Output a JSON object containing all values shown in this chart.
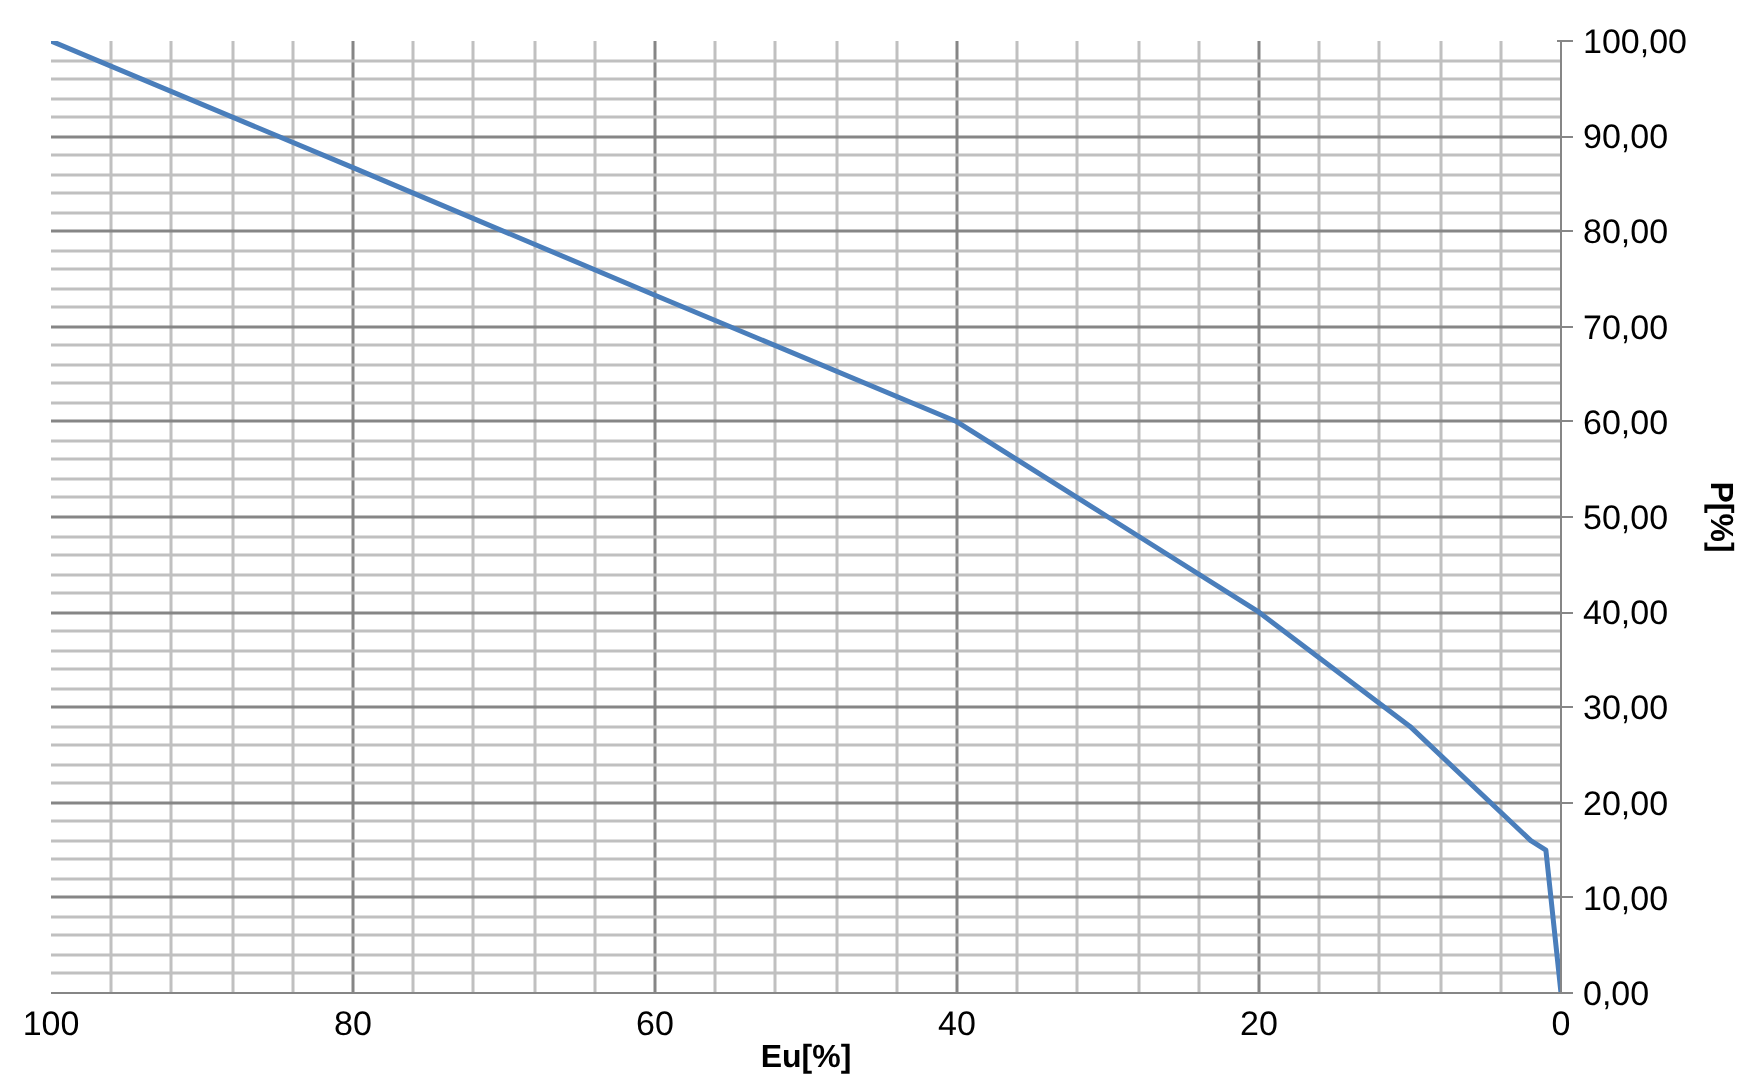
{
  "chart_data": {
    "type": "line",
    "xlabel": "Eu[%]",
    "ylabel": "P[%]",
    "x": [
      100,
      80,
      60,
      40,
      30,
      20,
      10,
      2,
      1,
      0
    ],
    "series": [
      {
        "color": "#4a7ebb",
        "values": [
          100,
          86.7,
          73.3,
          60,
          50,
          40,
          28,
          16,
          15,
          0
        ]
      }
    ],
    "xlim": [
      100,
      0
    ],
    "xticks": [
      100,
      80,
      60,
      40,
      20,
      0
    ],
    "ylim": [
      0,
      100
    ],
    "yticks": [
      {
        "value": 0,
        "label": "0,00"
      },
      {
        "value": 10,
        "label": "10,00"
      },
      {
        "value": 20,
        "label": "20,00"
      },
      {
        "value": 30,
        "label": "30,00"
      },
      {
        "value": 40,
        "label": "40,00"
      },
      {
        "value": 50,
        "label": "50,00"
      },
      {
        "value": 60,
        "label": "60,00"
      },
      {
        "value": 70,
        "label": "70,00"
      },
      {
        "value": 80,
        "label": "80,00"
      },
      {
        "value": 90,
        "label": "90,00"
      },
      {
        "value": 100,
        "label": "100,00"
      }
    ],
    "grid": true,
    "marker": "none",
    "line_style": "solid"
  }
}
